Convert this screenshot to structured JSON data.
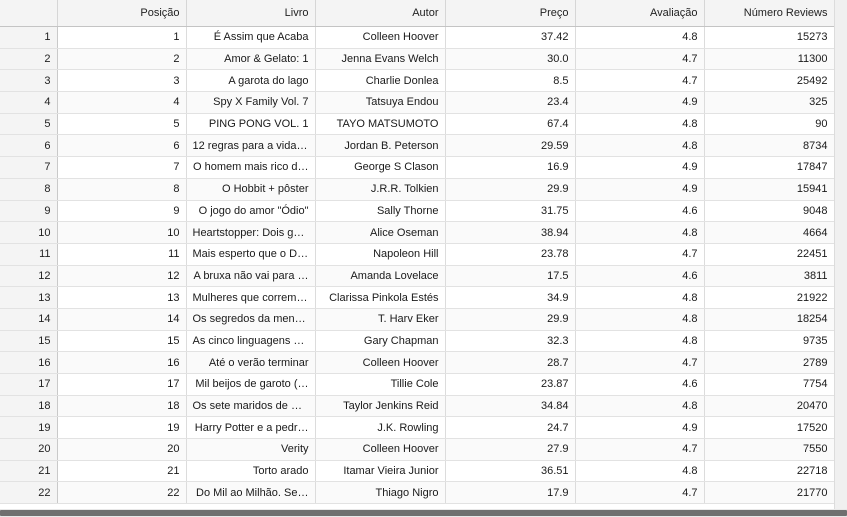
{
  "table": {
    "columns": [
      "Posição",
      "Livro",
      "Autor",
      "Preço",
      "Avaliação",
      "Número Reviews"
    ],
    "rows": [
      {
        "index": "1",
        "cells": [
          "1",
          "É Assim que Acaba",
          "Colleen Hoover",
          "37.42",
          "4.8",
          "15273"
        ]
      },
      {
        "index": "2",
        "cells": [
          "2",
          "Amor & Gelato: 1",
          "Jenna Evans Welch",
          "30.0",
          "4.7",
          "11300"
        ]
      },
      {
        "index": "3",
        "cells": [
          "3",
          "A garota do lago",
          "Charlie Donlea",
          "8.5",
          "4.7",
          "25492"
        ]
      },
      {
        "index": "4",
        "cells": [
          "4",
          "Spy X Family Vol. 7",
          "Tatsuya Endou",
          "23.4",
          "4.9",
          "325"
        ]
      },
      {
        "index": "5",
        "cells": [
          "5",
          "PING PONG VOL. 1",
          "TAYO MATSUMOTO",
          "67.4",
          "4.8",
          "90"
        ]
      },
      {
        "index": "6",
        "cells": [
          "6",
          "12 regras para a vida:…",
          "Jordan B. Peterson",
          "29.59",
          "4.8",
          "8734"
        ]
      },
      {
        "index": "7",
        "cells": [
          "7",
          "O homem mais rico d…",
          "George S Clason",
          "16.9",
          "4.9",
          "17847"
        ]
      },
      {
        "index": "8",
        "cells": [
          "8",
          "O Hobbit + pôster",
          "J.R.R. Tolkien",
          "29.9",
          "4.9",
          "15941"
        ]
      },
      {
        "index": "9",
        "cells": [
          "9",
          "O jogo do amor \"Ódio\"",
          "Sally Thorne",
          "31.75",
          "4.6",
          "9048"
        ]
      },
      {
        "index": "10",
        "cells": [
          "10",
          "Heartstopper: Dois ga…",
          "Alice Oseman",
          "38.94",
          "4.8",
          "4664"
        ]
      },
      {
        "index": "11",
        "cells": [
          "11",
          "Mais esperto que o Di…",
          "Napoleon Hill",
          "23.78",
          "4.7",
          "22451"
        ]
      },
      {
        "index": "12",
        "cells": [
          "12",
          "A bruxa não vai para …",
          "Amanda Lovelace",
          "17.5",
          "4.6",
          "3811"
        ]
      },
      {
        "index": "13",
        "cells": [
          "13",
          "Mulheres que correm …",
          "Clarissa Pinkola Estés",
          "34.9",
          "4.8",
          "21922"
        ]
      },
      {
        "index": "14",
        "cells": [
          "14",
          "Os segredos da ment…",
          "T. Harv Eker",
          "29.9",
          "4.8",
          "18254"
        ]
      },
      {
        "index": "15",
        "cells": [
          "15",
          "As cinco linguagens d…",
          "Gary Chapman",
          "32.3",
          "4.8",
          "9735"
        ]
      },
      {
        "index": "16",
        "cells": [
          "16",
          "Até o verão terminar",
          "Colleen Hoover",
          "28.7",
          "4.7",
          "2789"
        ]
      },
      {
        "index": "17",
        "cells": [
          "17",
          "Mil beijos de garoto (…",
          "Tillie Cole",
          "23.87",
          "4.6",
          "7754"
        ]
      },
      {
        "index": "18",
        "cells": [
          "18",
          "Os sete maridos de E…",
          "Taylor Jenkins Reid",
          "34.84",
          "4.8",
          "20470"
        ]
      },
      {
        "index": "19",
        "cells": [
          "19",
          "Harry Potter e a pedr…",
          "J.K. Rowling",
          "24.7",
          "4.9",
          "17520"
        ]
      },
      {
        "index": "20",
        "cells": [
          "20",
          "Verity",
          "Colleen Hoover",
          "27.9",
          "4.7",
          "7550"
        ]
      },
      {
        "index": "21",
        "cells": [
          "21",
          "Torto arado",
          "Itamar Vieira Junior",
          "36.51",
          "4.8",
          "22718"
        ]
      },
      {
        "index": "22",
        "cells": [
          "22",
          "Do Mil ao Milhão. Se…",
          "Thiago Nigro",
          "17.9",
          "4.7",
          "21770"
        ]
      }
    ]
  }
}
